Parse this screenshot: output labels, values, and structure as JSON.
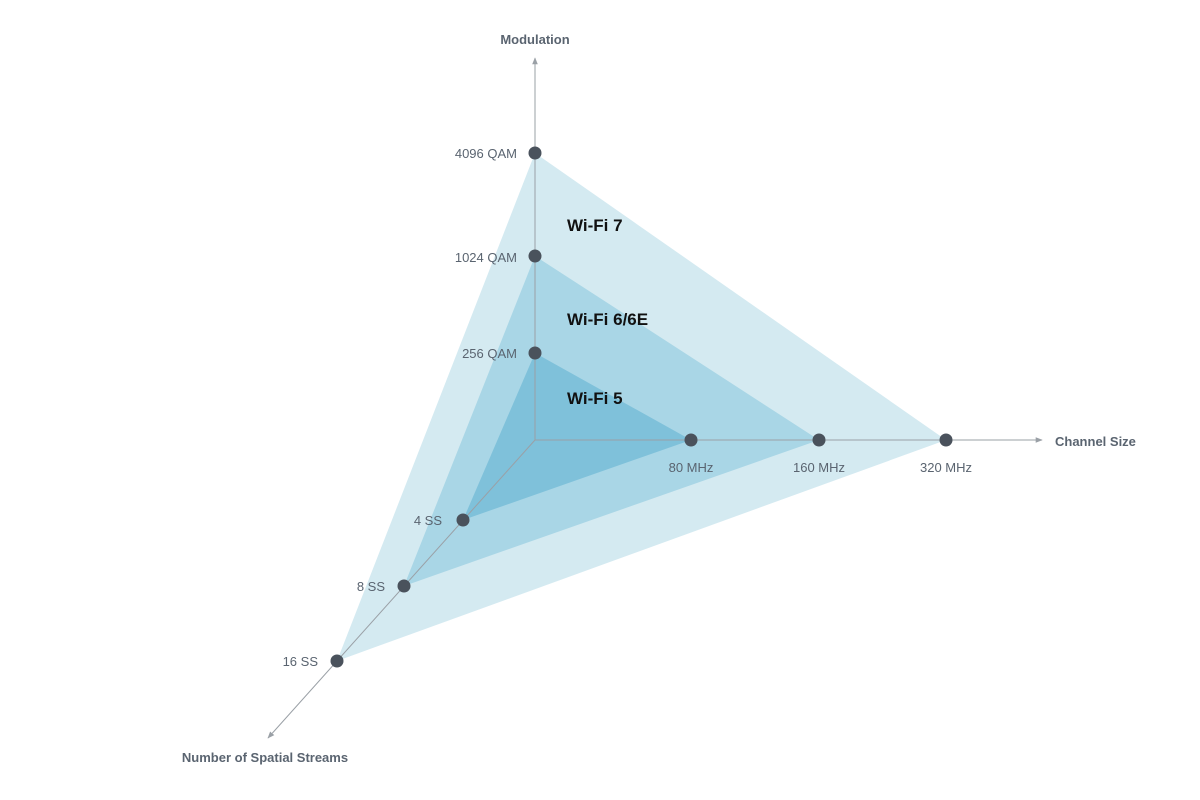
{
  "chart_data": {
    "type": "radar",
    "axes": [
      {
        "key": "modulation",
        "title": "Modulation",
        "ticks": [
          "256 QAM",
          "1024 QAM",
          "4096 QAM"
        ]
      },
      {
        "key": "channel",
        "title": "Channel Size",
        "ticks": [
          "80 MHz",
          "160 MHz",
          "320 MHz"
        ]
      },
      {
        "key": "streams",
        "title": "Number of Spatial Streams",
        "ticks": [
          "4 SS",
          "8 SS",
          "16 SS"
        ]
      }
    ],
    "series": [
      {
        "name": "Wi-Fi 7",
        "modulation": "4096 QAM",
        "channel": "320 MHz",
        "streams": "16 SS",
        "color": "#d4eaf1"
      },
      {
        "name": "Wi-Fi 6/6E",
        "modulation": "1024 QAM",
        "channel": "160 MHz",
        "streams": "8 SS",
        "color": "#a9d6e6"
      },
      {
        "name": "Wi-Fi 5",
        "modulation": "256 QAM",
        "channel": "80 MHz",
        "streams": "4 SS",
        "color": "#7fc1da"
      }
    ],
    "colors": {
      "axis": "#9aa0a6",
      "point": "#4a525c",
      "text": "#5a6470"
    }
  }
}
